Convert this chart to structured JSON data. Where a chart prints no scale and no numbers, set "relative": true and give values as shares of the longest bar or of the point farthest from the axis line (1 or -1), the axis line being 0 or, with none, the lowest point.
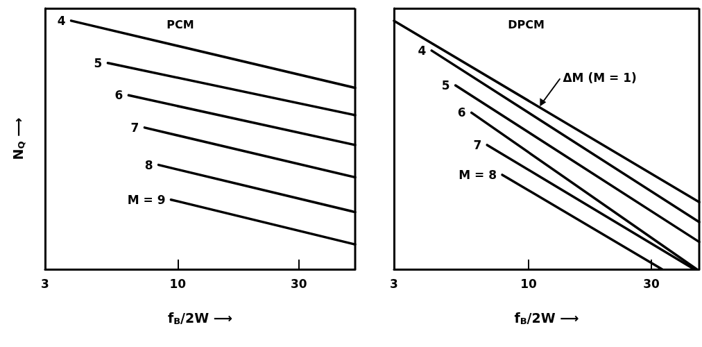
{
  "chart_data": [
    {
      "type": "line",
      "title": "PCM",
      "xlabel": "f$_{B}$/2W ⟶",
      "ylabel": "N$_{Q}$ ⟶",
      "relative": true,
      "log": "x",
      "xlim": [
        3,
        50
      ],
      "xticks": [
        3,
        10,
        30
      ],
      "grid": false,
      "legend": false,
      "series": [
        {
          "name": "4",
          "color": "#000000",
          "x": [
            3.8,
            50
          ],
          "values": [
            1.0,
            0.73
          ]
        },
        {
          "name": "5",
          "color": "#000000",
          "x": [
            5.3,
            50
          ],
          "values": [
            0.83,
            0.62
          ]
        },
        {
          "name": "6",
          "color": "#000000",
          "x": [
            6.4,
            50
          ],
          "values": [
            0.7,
            0.5
          ]
        },
        {
          "name": "7",
          "color": "#000000",
          "x": [
            7.4,
            50
          ],
          "values": [
            0.57,
            0.37
          ]
        },
        {
          "name": "8",
          "color": "#000000",
          "x": [
            8.4,
            50
          ],
          "values": [
            0.42,
            0.23
          ]
        },
        {
          "name": "M = 9",
          "color": "#000000",
          "x": [
            9.4,
            50
          ],
          "values": [
            0.28,
            0.1
          ]
        }
      ]
    },
    {
      "type": "line",
      "title": "DPCM",
      "xlabel": "f$_{B}$/2W ⟶",
      "relative": true,
      "log": "x",
      "xlim": [
        3,
        46
      ],
      "xticks": [
        3,
        10,
        30
      ],
      "grid": false,
      "legend": false,
      "annotations": [
        {
          "text": "ΔM (M = 1)",
          "x": 11,
          "y": 0.65
        }
      ],
      "series": [
        {
          "color": "#000000",
          "x": [
            3,
            46
          ],
          "values": [
            1.0,
            0.27
          ]
        },
        {
          "name": "4",
          "color": "#000000",
          "x": [
            4.2,
            46
          ],
          "values": [
            0.88,
            0.19
          ]
        },
        {
          "name": "5",
          "color": "#000000",
          "x": [
            5.2,
            46
          ],
          "values": [
            0.74,
            0.11
          ]
        },
        {
          "name": "6",
          "color": "#000000",
          "x": [
            6.0,
            45
          ],
          "values": [
            0.63,
            0
          ]
        },
        {
          "name": "7",
          "color": "#000000",
          "x": [
            6.9,
            44
          ],
          "values": [
            0.5,
            0
          ]
        },
        {
          "name": "M = 8",
          "color": "#000000",
          "x": [
            7.9,
            33
          ],
          "values": [
            0.38,
            0
          ]
        }
      ]
    }
  ]
}
